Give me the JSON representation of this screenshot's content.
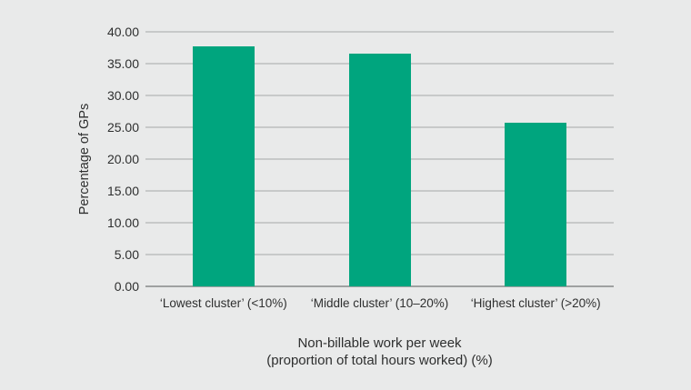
{
  "chart_data": {
    "type": "bar",
    "categories": [
      "‘Lowest cluster’ (<10%)",
      "‘Middle cluster’ (10–20%)",
      "‘Highest cluster’ (>20%)"
    ],
    "values": [
      37.7,
      36.6,
      25.7
    ],
    "title": "",
    "xlabel": "Non-billable work per week (proportion of total hours worked) (%)",
    "xlabel_lines": [
      "Non-billable work per week",
      "(proportion of total hours worked) (%)"
    ],
    "ylabel": "Percentage of GPs",
    "ylim": [
      0,
      40
    ],
    "yticks": [
      0,
      5,
      10,
      15,
      20,
      25,
      30,
      35,
      40
    ],
    "ytick_labels": [
      "0.00",
      "5.00",
      "10.00",
      "15.00",
      "20.00",
      "25.00",
      "30.00",
      "35.00",
      "40.00"
    ],
    "grid": true,
    "legend": false,
    "bar_color": "#00a57e",
    "background_color": "#e9eaea",
    "gridline_color": "#c7c9c9",
    "axis_line_color": "#9fa1a1",
    "text_color": "#2e2f2f"
  }
}
